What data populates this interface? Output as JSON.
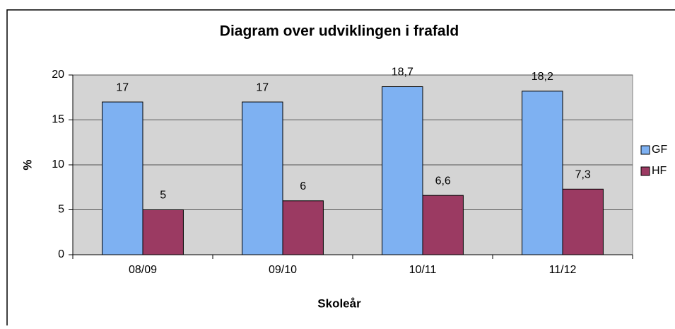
{
  "chart_data": {
    "type": "bar",
    "title": "Diagram over udviklingen i frafald",
    "xlabel": "Skoleår",
    "ylabel": "%",
    "categories": [
      "08/09",
      "09/10",
      "10/11",
      "11/12"
    ],
    "series": [
      {
        "name": "GF",
        "color": "#7eb1f2",
        "values": [
          17,
          17,
          18.7,
          18.2
        ],
        "value_labels": [
          "17",
          "17",
          "18,7",
          "18,2"
        ]
      },
      {
        "name": "HF",
        "color": "#9b3a62",
        "values": [
          5,
          6,
          6.6,
          7.3
        ],
        "value_labels": [
          "5",
          "6",
          "6,6",
          "7,3"
        ]
      }
    ],
    "ylim": [
      0,
      20
    ],
    "yticks": [
      0,
      5,
      10,
      15,
      20
    ],
    "grid": true,
    "legend": "right"
  }
}
